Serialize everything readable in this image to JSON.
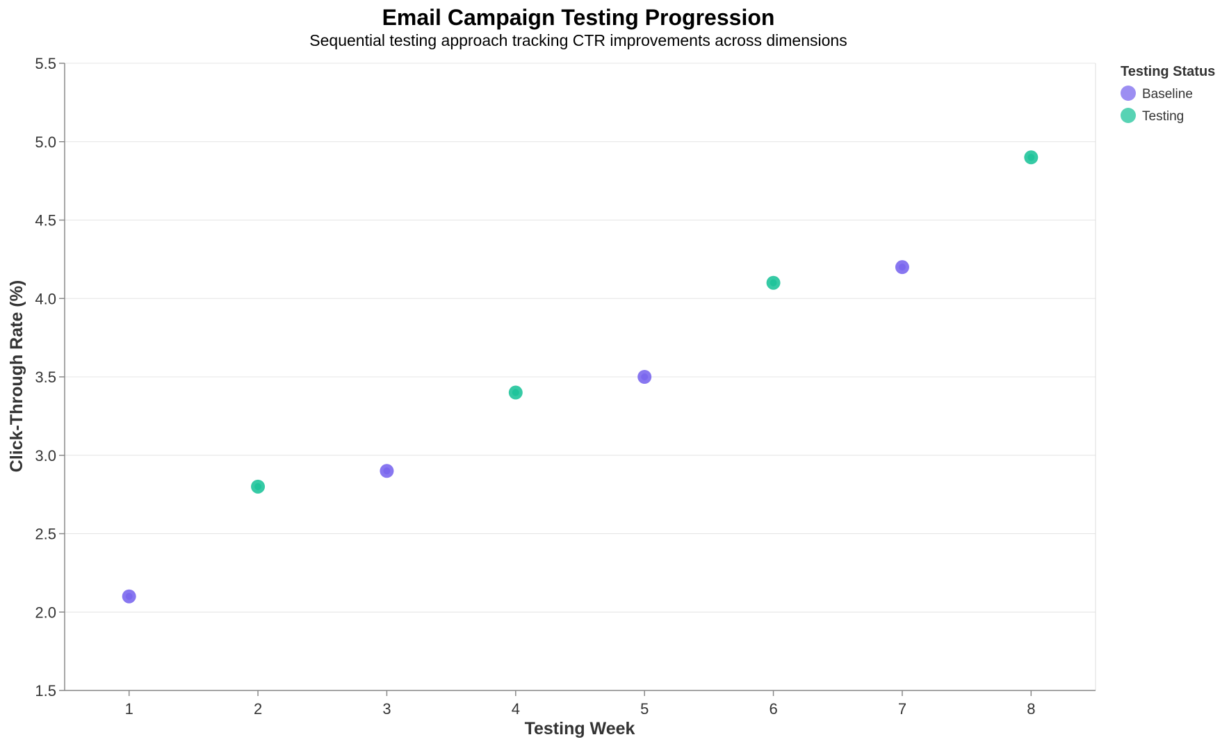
{
  "chart_data": {
    "type": "scatter",
    "title": "Email Campaign Testing Progression",
    "subtitle": "Sequential testing approach tracking CTR improvements across dimensions",
    "xlabel": "Testing Week",
    "ylabel": "Click-Through Rate (%)",
    "xlim": [
      0.5,
      8.5
    ],
    "ylim": [
      1.5,
      5.5
    ],
    "x_ticks": [
      "1",
      "2",
      "3",
      "4",
      "5",
      "6",
      "7",
      "8"
    ],
    "y_ticks": [
      "1.5",
      "2.0",
      "2.5",
      "3.0",
      "3.5",
      "4.0",
      "4.5",
      "5.0",
      "5.5"
    ],
    "grid": true,
    "legend": {
      "title": "Testing Status",
      "position": "top-right"
    },
    "series": [
      {
        "name": "Baseline",
        "color": "#7b68ee",
        "points": [
          {
            "x": 1,
            "y": 2.1
          },
          {
            "x": 3,
            "y": 2.9
          },
          {
            "x": 5,
            "y": 3.5
          },
          {
            "x": 7,
            "y": 4.2
          }
        ]
      },
      {
        "name": "Testing",
        "color": "#20c49b",
        "points": [
          {
            "x": 2,
            "y": 2.8
          },
          {
            "x": 4,
            "y": 3.4
          },
          {
            "x": 6,
            "y": 4.1
          },
          {
            "x": 8,
            "y": 4.9
          }
        ]
      }
    ]
  }
}
